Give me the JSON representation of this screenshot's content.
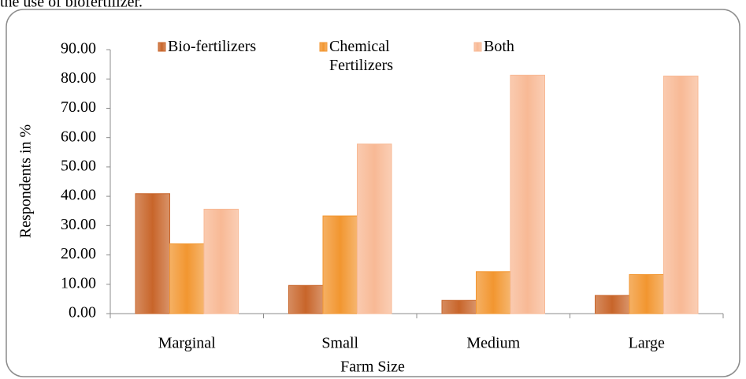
{
  "annotations": [
    "the use of biofertilizer."
  ],
  "chart_data": {
    "type": "bar",
    "y_label": "Respondents in %",
    "x_label": "Farm Size",
    "categories": [
      "Marginal",
      "Small",
      "Medium",
      "Large"
    ],
    "series": [
      {
        "name": "Bio-fertilizers",
        "color": "#c8652a",
        "values": [
          40.9,
          9.6,
          4.5,
          6.2
        ]
      },
      {
        "name": "Chemical Fertilizers",
        "color": "#f29630",
        "values": [
          23.8,
          33.3,
          14.3,
          13.3
        ]
      },
      {
        "name": "Both",
        "color": "#f8b995",
        "values": [
          35.6,
          57.8,
          81.3,
          81.0
        ]
      }
    ],
    "ylim": [
      0,
      90
    ],
    "yticks": [
      {
        "value": 0,
        "label": "0.00"
      },
      {
        "value": 10,
        "label": "10.00"
      },
      {
        "value": 20,
        "label": "20.00"
      },
      {
        "value": 30,
        "label": "30.00"
      },
      {
        "value": 40,
        "label": "40.00"
      },
      {
        "value": 50,
        "label": "50.00"
      },
      {
        "value": 60,
        "label": "60.00"
      },
      {
        "value": 70,
        "label": "70.00"
      },
      {
        "value": 80,
        "label": "80.00"
      },
      {
        "value": 90,
        "label": "90.00"
      }
    ],
    "grid": false,
    "legend": "top"
  }
}
